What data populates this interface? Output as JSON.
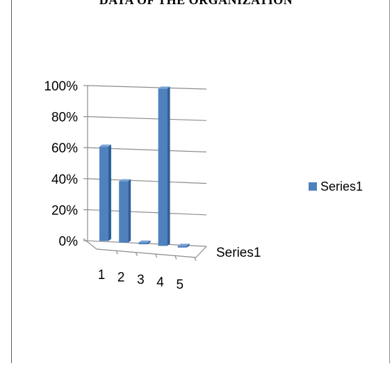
{
  "chart_data": {
    "type": "bar",
    "title": "DATA OF THE ORGANIZATION",
    "categories": [
      "1",
      "2",
      "3",
      "4",
      "5"
    ],
    "series": [
      {
        "name": "Series1",
        "values": [
          60,
          39,
          0,
          100,
          0
        ]
      }
    ],
    "depth_axis_label": "Series1",
    "yticks": [
      "0%",
      "20%",
      "40%",
      "60%",
      "80%",
      "100%"
    ],
    "ylim": [
      0,
      100
    ],
    "grid": true,
    "legend": {
      "position": "right",
      "entries": [
        "Series1"
      ]
    },
    "colors": {
      "bar_front": "#4f81bd",
      "bar_side": "#2f5f98",
      "bar_top": "#7aa3d6",
      "grid": "#8c8c8c"
    }
  }
}
